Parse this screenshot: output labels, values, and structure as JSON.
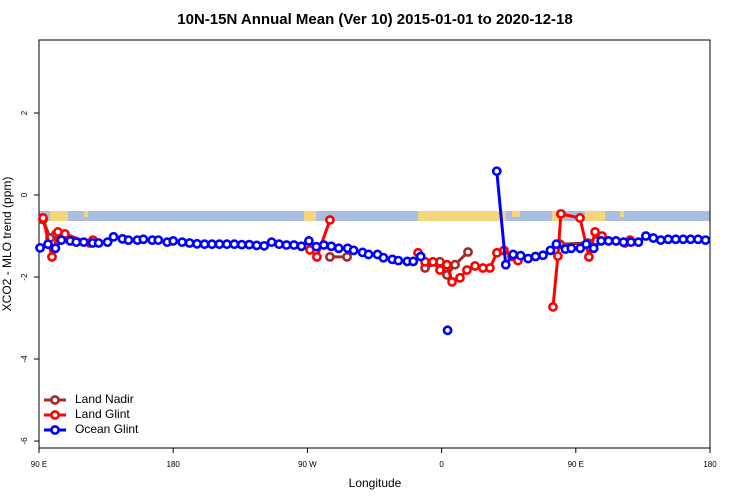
{
  "chart_data": {
    "type": "line",
    "title": "10N-15N Annual Mean (Ver 10)   2015-01-01 to 2020-12-18",
    "x_label": "Longitude",
    "y_label": "XCO2 - MLO trend (ppm)",
    "xlim": [
      90,
      540
    ],
    "ylim": [
      -6.17,
      3.78
    ],
    "xticks": [
      {
        "value": 90,
        "label": "90 E"
      },
      180,
      {
        "value": 270,
        "label": "90 W"
      },
      {
        "value": 360,
        "label": "0"
      },
      {
        "value": 450,
        "label": "90 E"
      },
      {
        "value": 540,
        "label": "180"
      }
    ],
    "yticks": [
      -6,
      -4,
      -2,
      0,
      2
    ],
    "legend": "bottom-left",
    "series": [
      {
        "name": "Land Nadir",
        "color": "#a52a2a",
        "x": [
          92.7,
          97.4,
          101.4,
          null,
          285.1,
          296.6,
          null,
          348.9,
          358.9,
          363.6,
          369,
          377.7,
          null,
          439.4,
          458.2,
          463.5
        ],
        "values": [
          -0.6,
          -1.05,
          -0.95,
          null,
          -1.51,
          -1.51,
          null,
          -1.78,
          -1.63,
          -1.95,
          -1.7,
          -1.39,
          null,
          -1.2,
          -1.17,
          -1.12
        ]
      },
      {
        "name": "Land Glint",
        "color": "#ff0000",
        "x": [
          92.7,
          98.7,
          102.7,
          107.4,
          124.1,
          126.2,
          null,
          271.7,
          276.4,
          285.1,
          null,
          344.2,
          348.9,
          354.2,
          358.9,
          363.6,
          367,
          372.3,
          377,
          382.4,
          387.7,
          392.4,
          397.1,
          401.8,
          407.2,
          411.2,
          null,
          434.7,
          438,
          440,
          452.8,
          458.8,
          462.9,
          467.6,
          483,
          486.4
        ],
        "values": [
          -0.56,
          -1.51,
          -0.9,
          -0.95,
          -1.17,
          -1.1,
          null,
          -1.34,
          -1.51,
          -0.61,
          null,
          -1.41,
          -1.63,
          -1.63,
          -1.83,
          -1.7,
          -2.12,
          -2.02,
          -1.83,
          -1.73,
          -1.78,
          -1.78,
          -1.41,
          -1.35,
          -1.5,
          -1.6,
          null,
          -2.73,
          -1.49,
          -0.46,
          -0.56,
          -1.51,
          -0.9,
          -1.0,
          -1.17,
          -1.1
        ]
      },
      {
        "name": "Ocean Glint",
        "color": "#0000ff",
        "x": [
          90.7,
          96,
          101,
          105,
          111,
          115,
          120,
          126,
          130,
          136,
          140,
          146,
          150,
          156,
          160,
          166,
          170,
          176,
          180,
          186,
          191,
          196,
          201,
          206,
          211,
          216,
          221,
          226,
          231,
          236,
          241,
          246,
          251,
          256,
          261,
          266,
          271,
          276,
          281,
          286,
          291,
          297,
          301,
          307,
          311,
          317,
          321,
          327,
          331,
          337,
          341,
          346,
          null,
          364,
          null,
          397,
          403,
          408,
          413,
          418,
          423,
          428,
          433,
          437,
          443,
          447,
          453,
          457,
          462,
          467,
          472,
          477,
          482,
          487,
          492,
          497,
          502,
          507,
          512,
          517,
          522,
          527,
          532,
          537
        ],
        "values": [
          -1.29,
          -1.2,
          -1.3,
          -1.1,
          -1.12,
          -1.15,
          -1.15,
          -1.17,
          -1.17,
          -1.15,
          -1.02,
          -1.07,
          -1.1,
          -1.1,
          -1.08,
          -1.1,
          -1.1,
          -1.15,
          -1.12,
          -1.15,
          -1.17,
          -1.19,
          -1.2,
          -1.2,
          -1.2,
          -1.2,
          -1.2,
          -1.21,
          -1.21,
          -1.23,
          -1.24,
          -1.15,
          -1.2,
          -1.22,
          -1.22,
          -1.25,
          -1.12,
          -1.26,
          -1.22,
          -1.25,
          -1.3,
          -1.3,
          -1.35,
          -1.4,
          -1.45,
          -1.45,
          -1.53,
          -1.57,
          -1.6,
          -1.62,
          -1.62,
          -1.5,
          null,
          -3.3,
          null,
          0.58,
          -1.7,
          -1.45,
          -1.48,
          -1.55,
          -1.5,
          -1.47,
          -1.35,
          -1.2,
          -1.32,
          -1.3,
          -1.3,
          -1.2,
          -1.3,
          -1.12,
          -1.12,
          -1.12,
          -1.15,
          -1.15,
          -1.15,
          -1.0,
          -1.05,
          -1.1,
          -1.08,
          -1.08,
          -1.08,
          -1.08,
          -1.08,
          -1.1
        ]
      }
    ]
  }
}
